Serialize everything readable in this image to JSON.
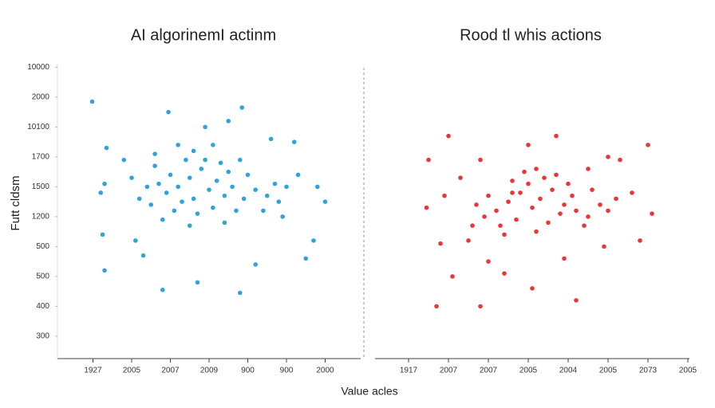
{
  "shared_labels": {
    "x": "Value acles",
    "y": "Futt cldsm"
  },
  "chart_data": [
    {
      "type": "scatter",
      "title": "AI algorinemI actinm",
      "color": "#1a9ad6",
      "xlim": [
        0,
        8
      ],
      "ylim": [
        0.25,
        10.25
      ],
      "xticks": [
        {
          "value": 1,
          "label": "1927"
        },
        {
          "value": 2,
          "label": "2005"
        },
        {
          "value": 3,
          "label": "2007"
        },
        {
          "value": 4,
          "label": "2009"
        },
        {
          "value": 5,
          "label": "900"
        },
        {
          "value": 6,
          "label": "900"
        },
        {
          "value": 7,
          "label": "2000"
        }
      ],
      "yticks": [
        {
          "value": 10,
          "label": "10000"
        },
        {
          "value": 9,
          "label": "2000"
        },
        {
          "value": 8,
          "label": "10100"
        },
        {
          "value": 7,
          "label": "1700"
        },
        {
          "value": 6,
          "label": "1500"
        },
        {
          "value": 5,
          "label": "1200"
        },
        {
          "value": 4,
          "label": "500"
        },
        {
          "value": 3,
          "label": "500"
        },
        {
          "value": 2,
          "label": "400"
        },
        {
          "value": 1,
          "label": "300"
        }
      ],
      "x": [
        0.98,
        1.35,
        1.3,
        1.2,
        1.25,
        1.3,
        2.8,
        3.7,
        4.8,
        2.95,
        4.5,
        4.85,
        3.9,
        6.2,
        6.8,
        7.0,
        6.7,
        6.5,
        5.2,
        2.3,
        2.1,
        1.8,
        2.6,
        5.6,
        5.9,
        6.3,
        3.2,
        3.5,
        3.8,
        4.0,
        4.2,
        3.6,
        3.3,
        2.9,
        2.7,
        4.4,
        4.6,
        4.9,
        5.2,
        5.5,
        5.7,
        3.9,
        4.3,
        3.4,
        3.0,
        2.5,
        2.4,
        3.1,
        3.7,
        4.1,
        4.7,
        5.0,
        4.5,
        3.6,
        2.2,
        2.0,
        5.4,
        6.0,
        5.8,
        3.5,
        4.4,
        2.8,
        3.2,
        4.1,
        2.6,
        4.8
      ],
      "y": [
        8.85,
        7.3,
        6.1,
        5.8,
        4.4,
        3.2,
        2.55,
        2.8,
        2.45,
        8.5,
        8.2,
        8.65,
        8.0,
        7.5,
        6.0,
        5.5,
        4.2,
        3.6,
        3.4,
        3.7,
        4.2,
        6.9,
        7.1,
        7.6,
        5.0,
        6.4,
        6.0,
        6.3,
        6.6,
        5.9,
        6.2,
        5.6,
        5.5,
        5.8,
        6.1,
        5.7,
        6.0,
        5.6,
        5.9,
        5.7,
        6.1,
        6.9,
        6.8,
        6.9,
        6.4,
        5.4,
        6.0,
        5.2,
        5.1,
        5.3,
        5.2,
        6.4,
        6.5,
        7.2,
        5.6,
        6.3,
        5.2,
        6.0,
        5.5,
        4.7,
        4.8,
        4.9,
        7.4,
        7.4,
        6.7,
        6.9
      ]
    },
    {
      "type": "scatter",
      "title": "Rood tl whis actions",
      "color": "#e8201e",
      "xlim": [
        0,
        8.2
      ],
      "ylim": [
        0.25,
        10.25
      ],
      "xticks": [
        {
          "value": 1,
          "label": "1917"
        },
        {
          "value": 2,
          "label": "2007"
        },
        {
          "value": 3,
          "label": "2007"
        },
        {
          "value": 4,
          "label": "2005"
        },
        {
          "value": 5,
          "label": "2004"
        },
        {
          "value": 6,
          "label": "2005"
        },
        {
          "value": 7,
          "label": "2073"
        },
        {
          "value": 8,
          "label": "2005"
        }
      ],
      "x": [
        1.5,
        1.45,
        1.9,
        1.8,
        1.7,
        2.0,
        2.1,
        2.8,
        2.8,
        3.4,
        3.6,
        4.0,
        4.1,
        4.7,
        5.2,
        5.5,
        5.9,
        6.3,
        6.6,
        7.0,
        7.1,
        6.8,
        4.9,
        2.5,
        2.3,
        6.0,
        3.0,
        3.2,
        3.5,
        3.8,
        4.1,
        4.3,
        4.6,
        4.9,
        5.2,
        5.5,
        5.8,
        4.0,
        4.4,
        3.7,
        3.3,
        2.9,
        2.7,
        4.5,
        4.8,
        5.1,
        5.4,
        6.0,
        6.2,
        3.9,
        4.2,
        3.6,
        3.0,
        2.6,
        4.7,
        5.0,
        3.4,
        4.2,
        5.6
      ],
      "y": [
        6.9,
        5.3,
        5.7,
        4.1,
        2.0,
        7.7,
        3.0,
        2.0,
        6.9,
        3.1,
        5.8,
        7.4,
        2.6,
        7.7,
        2.2,
        6.6,
        4.0,
        6.9,
        5.8,
        7.4,
        5.1,
        4.2,
        3.6,
        4.2,
        6.3,
        7.0,
        3.5,
        5.2,
        5.5,
        5.8,
        5.3,
        5.6,
        5.9,
        5.4,
        5.2,
        5.0,
        5.4,
        6.1,
        6.3,
        4.9,
        4.7,
        5.0,
        5.4,
        4.8,
        5.1,
        5.7,
        4.7,
        5.2,
        5.6,
        6.5,
        6.6,
        6.2,
        5.7,
        4.7,
        6.4,
        6.1,
        4.4,
        4.5,
        5.9
      ]
    }
  ]
}
